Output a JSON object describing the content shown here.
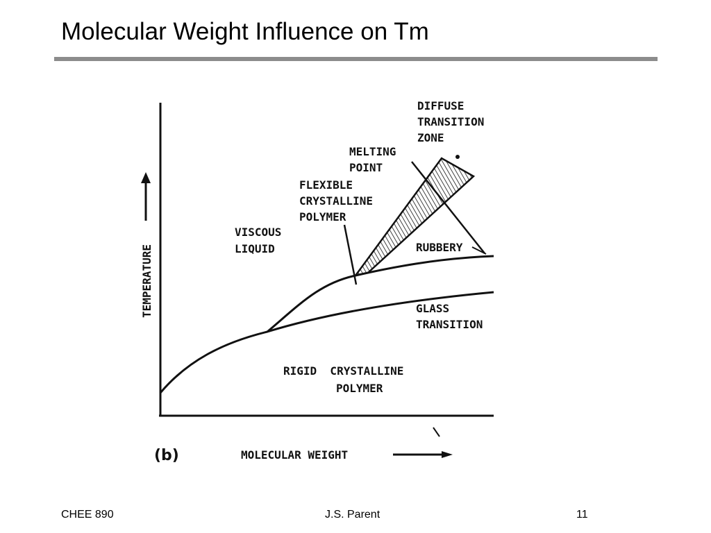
{
  "slide": {
    "title": "Molecular Weight Influence on Tm"
  },
  "diagram": {
    "panel_label": "(b)",
    "x_axis_label": "MOLECULAR WEIGHT",
    "y_axis_label": "TEMPERATURE",
    "regions": {
      "diffuse_line1": "DIFFUSE",
      "diffuse_line2": "TRANSITION",
      "diffuse_line3": "ZONE",
      "melting_line1": "MELTING",
      "melting_line2": "POINT",
      "flexible_line1": "FLEXIBLE",
      "flexible_line2": "CRYSTALLINE",
      "flexible_line3": "POLYMER",
      "viscous_line1": "VISCOUS",
      "viscous_line2": "LIQUID",
      "rubbery": "RUBBERY",
      "glass_line1": "GLASS",
      "glass_line2": "TRANSITION",
      "rigid_line1": "RIGID  CRYSTALLINE",
      "rigid_line2": "POLYMER"
    }
  },
  "footer": {
    "course": "CHEE 890",
    "author": "J.S. Parent",
    "page_number": "11"
  },
  "colors": {
    "rule": "#8c8c8c",
    "ink": "#111111"
  }
}
